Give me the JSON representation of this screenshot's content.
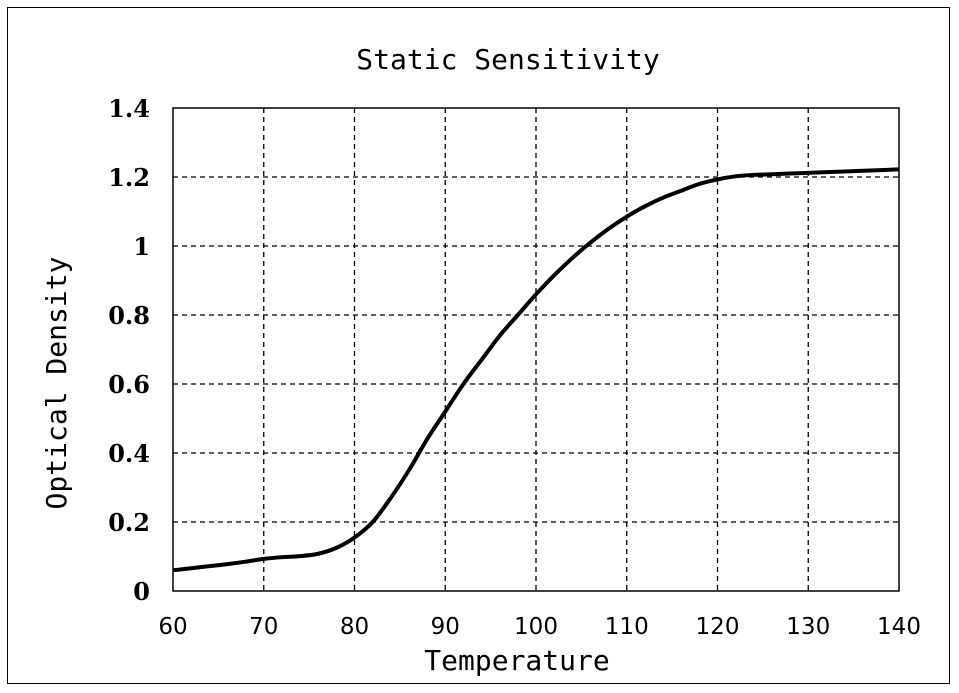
{
  "chart_data": {
    "type": "line",
    "title": "Static Sensitivity",
    "xlabel": "Temperature",
    "ylabel": "Optical Density",
    "xlim": [
      60,
      140
    ],
    "ylim": [
      0,
      1.4
    ],
    "x_ticks": [
      "60",
      "70",
      "80",
      "90",
      "100",
      "110",
      "120",
      "130",
      "140"
    ],
    "y_ticks": [
      "0",
      "0.2",
      "0.4",
      "0.6",
      "0.8",
      "1",
      "1.2",
      "1.4"
    ],
    "grid": true,
    "legend": "none",
    "series": [
      {
        "color": "#000000",
        "x": [
          60,
          62,
          64,
          66,
          68,
          70,
          72,
          74,
          76,
          78,
          80,
          82,
          84,
          86,
          88,
          90,
          92,
          94,
          96,
          98,
          100,
          102,
          104,
          106,
          108,
          110,
          112,
          114,
          116,
          118,
          120,
          122,
          124,
          126,
          128,
          130,
          132,
          134,
          136,
          138,
          140
        ],
        "y": [
          0.06,
          0.066,
          0.072,
          0.078,
          0.085,
          0.093,
          0.098,
          0.101,
          0.108,
          0.125,
          0.155,
          0.2,
          0.27,
          0.35,
          0.44,
          0.52,
          0.6,
          0.67,
          0.74,
          0.8,
          0.86,
          0.915,
          0.965,
          1.01,
          1.05,
          1.085,
          1.115,
          1.14,
          1.16,
          1.18,
          1.193,
          1.202,
          1.206,
          1.208,
          1.21,
          1.212,
          1.214,
          1.216,
          1.218,
          1.22,
          1.222
        ]
      }
    ]
  }
}
